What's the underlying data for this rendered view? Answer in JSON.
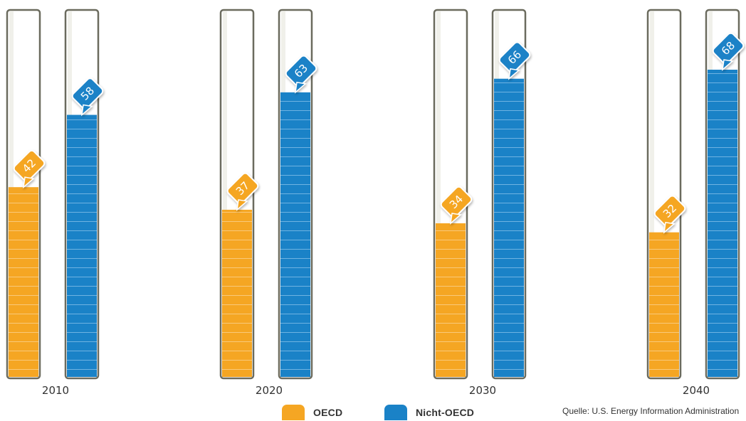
{
  "chart_data": {
    "type": "bar",
    "categories": [
      "2010",
      "2020",
      "2030",
      "2040"
    ],
    "series": [
      {
        "name": "OECD",
        "values": [
          42,
          37,
          34,
          32
        ],
        "color": "#f5a623"
      },
      {
        "name": "Nicht-OECD",
        "values": [
          58,
          63,
          66,
          68
        ],
        "color": "#1a82c7"
      }
    ],
    "ylim": [
      0,
      100
    ],
    "grid": false,
    "legend": "bottom",
    "source": "Quelle: U.S. Energy Information Administration"
  }
}
